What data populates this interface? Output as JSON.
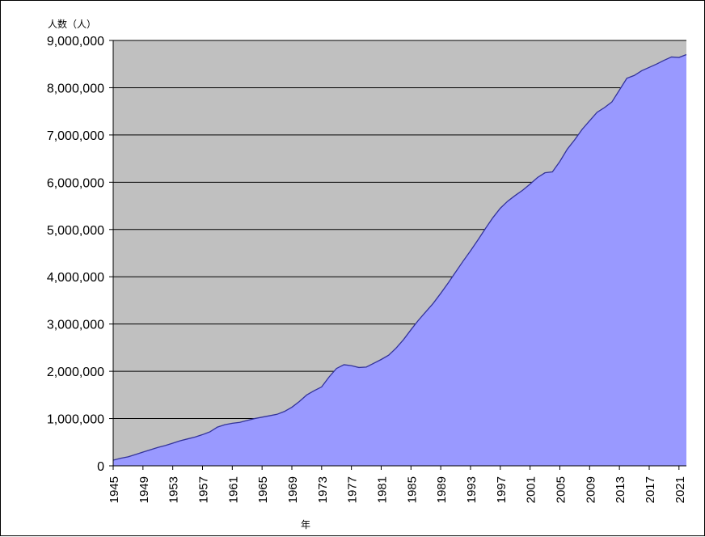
{
  "chart_data": {
    "type": "area",
    "title": "",
    "ylabel": "人数（人）",
    "xlabel": "年",
    "ylim": [
      0,
      9000000
    ],
    "xlim": [
      1945,
      2022
    ],
    "y_ticks": [
      0,
      1000000,
      2000000,
      3000000,
      4000000,
      5000000,
      6000000,
      7000000,
      8000000,
      9000000
    ],
    "y_tick_labels": [
      "0",
      "1,000,000",
      "2,000,000",
      "3,000,000",
      "4,000,000",
      "5,000,000",
      "6,000,000",
      "7,000,000",
      "8,000,000",
      "9,000,000"
    ],
    "x_tick_labels": [
      "1945",
      "1949",
      "1953",
      "1957",
      "1961",
      "1965",
      "1969",
      "1973",
      "1977",
      "1981",
      "1985",
      "1989",
      "1993",
      "1997",
      "2001",
      "2005",
      "2009",
      "2013",
      "2017",
      "2021"
    ],
    "grid": true,
    "legend": "none",
    "colors": {
      "plot_background": "#c0c0c0",
      "area_fill": "#9999ff",
      "area_line": "#333399",
      "grid": "#000000"
    },
    "series": [
      {
        "x": [
          1945,
          1946,
          1947,
          1948,
          1949,
          1950,
          1951,
          1952,
          1953,
          1954,
          1955,
          1956,
          1957,
          1958,
          1959,
          1960,
          1961,
          1962,
          1963,
          1964,
          1965,
          1966,
          1967,
          1968,
          1969,
          1970,
          1971,
          1972,
          1973,
          1974,
          1975,
          1976,
          1977,
          1978,
          1979,
          1980,
          1981,
          1982,
          1983,
          1984,
          1985,
          1986,
          1987,
          1988,
          1989,
          1990,
          1991,
          1992,
          1993,
          1994,
          1995,
          1996,
          1997,
          1998,
          1999,
          2000,
          2001,
          2002,
          2003,
          2004,
          2005,
          2006,
          2007,
          2008,
          2009,
          2010,
          2011,
          2012,
          2013,
          2014,
          2015,
          2016,
          2017,
          2018,
          2019,
          2020,
          2021,
          2022
        ],
        "values": [
          120000,
          160000,
          190000,
          240000,
          290000,
          340000,
          390000,
          430000,
          480000,
          530000,
          570000,
          610000,
          660000,
          720000,
          820000,
          870000,
          900000,
          920000,
          960000,
          1000000,
          1030000,
          1060000,
          1090000,
          1150000,
          1240000,
          1360000,
          1500000,
          1590000,
          1670000,
          1880000,
          2060000,
          2140000,
          2120000,
          2080000,
          2090000,
          2170000,
          2250000,
          2340000,
          2490000,
          2670000,
          2880000,
          3080000,
          3260000,
          3440000,
          3650000,
          3870000,
          4100000,
          4330000,
          4550000,
          4780000,
          5020000,
          5250000,
          5450000,
          5600000,
          5720000,
          5830000,
          5960000,
          6100000,
          6200000,
          6220000,
          6440000,
          6700000,
          6900000,
          7120000,
          7300000,
          7480000,
          7580000,
          7700000,
          7950000,
          8200000,
          8260000,
          8360000,
          8430000,
          8500000,
          8580000,
          8650000,
          8640000,
          8700000
        ]
      }
    ]
  }
}
